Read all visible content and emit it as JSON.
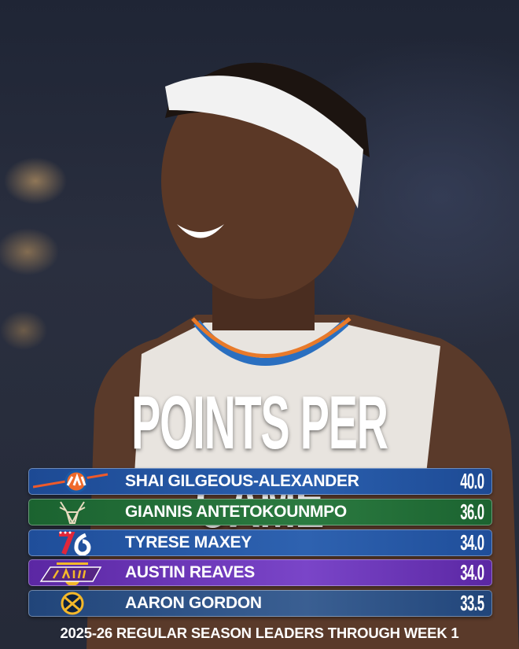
{
  "title": "POINTS PER GAME",
  "leaders": [
    {
      "team_logo": "OKC",
      "name": "SHAI GILGEOUS-ALEXANDER",
      "value": "40.0",
      "color": "#1f4f9c"
    },
    {
      "team_logo": "bucks-deer",
      "name": "GIANNIS ANTETOKOUNMPO",
      "value": "36.0",
      "color": "#1f6b34"
    },
    {
      "team_logo": "76",
      "name": "TYRESE MAXEY",
      "value": "34.0",
      "color": "#2152a0"
    },
    {
      "team_logo": "LOS ANGELES LAKERS",
      "name": "AUSTIN REAVES",
      "value": "34.0",
      "color": "#6a2fb3"
    },
    {
      "team_logo": "nuggets-pickaxes",
      "name": "AARON GORDON",
      "value": "33.5",
      "color": "#24487e"
    }
  ],
  "footer": "2025-26 REGULAR SEASON LEADERS THROUGH WEEK 1"
}
